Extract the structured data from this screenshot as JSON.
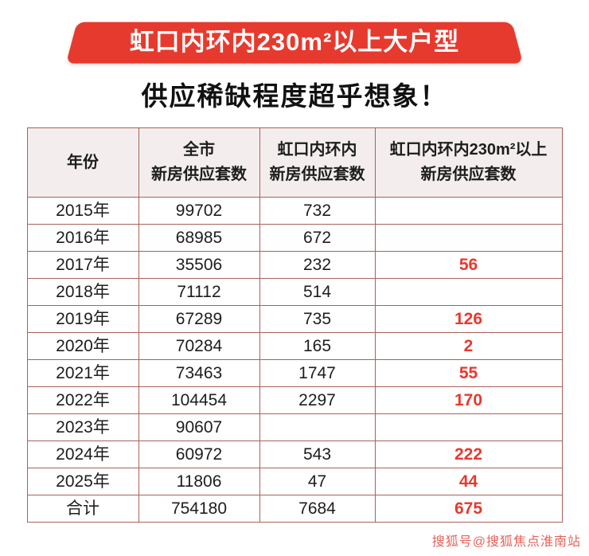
{
  "banner": {
    "title": "虹口内环内230m²以上大户型",
    "bg_color": "#e73a2e",
    "text_color": "#ffffff"
  },
  "subtitle": "供应稀缺程度超乎想象！",
  "chart_data": {
    "type": "table",
    "title": "虹口内环内230m²以上大户型 供应稀缺程度超乎想象！",
    "columns": [
      {
        "lines": [
          "年份"
        ]
      },
      {
        "lines": [
          "全市",
          "新房供应套数"
        ]
      },
      {
        "lines": [
          "虹口内环内",
          "新房供应套数"
        ]
      },
      {
        "lines": [
          "虹口内环内230m²以上",
          "新房供应套数"
        ]
      }
    ],
    "rows": [
      [
        "2015年",
        "99702",
        "732",
        ""
      ],
      [
        "2016年",
        "68985",
        "672",
        ""
      ],
      [
        "2017年",
        "35506",
        "232",
        "56"
      ],
      [
        "2018年",
        "71112",
        "514",
        ""
      ],
      [
        "2019年",
        "67289",
        "735",
        "126"
      ],
      [
        "2020年",
        "70284",
        "165",
        "2"
      ],
      [
        "2021年",
        "73463",
        "1747",
        "55"
      ],
      [
        "2022年",
        "104454",
        "2297",
        "170"
      ],
      [
        "2023年",
        "90607",
        "",
        ""
      ],
      [
        "2024年",
        "60972",
        "543",
        "222"
      ],
      [
        "2025年",
        "11806",
        "47",
        "44"
      ],
      [
        "合计",
        "754180",
        "7684",
        "675"
      ]
    ]
  },
  "watermark": "搜狐号@搜狐焦点淮南站",
  "colors": {
    "banner_red": "#e73a2e",
    "number_red": "#e8382d",
    "table_border": "#a8625a",
    "header_bg": "#f3eeed",
    "watermark_red": "#e4635a"
  }
}
